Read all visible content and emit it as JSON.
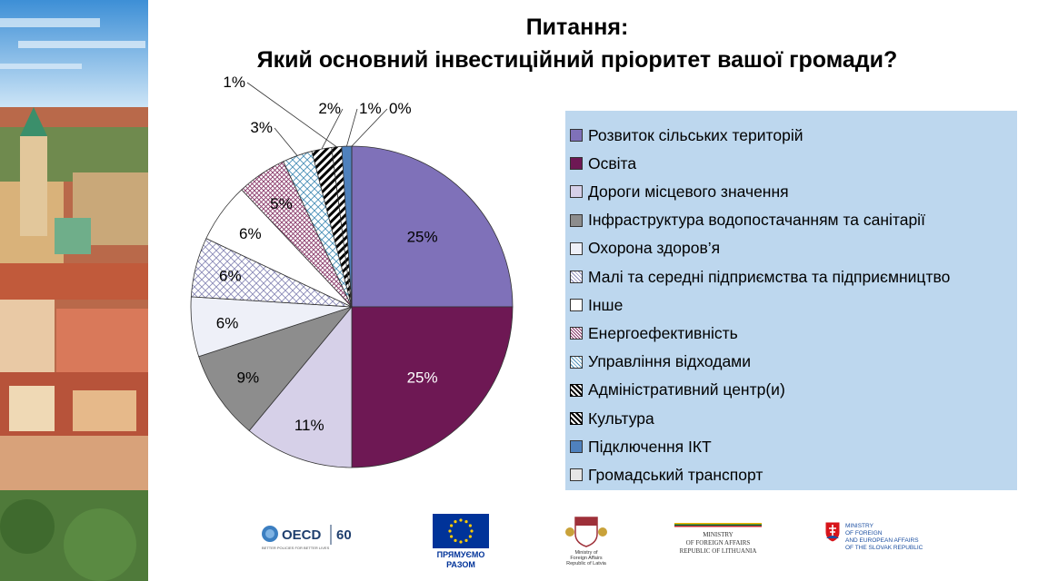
{
  "slide": {
    "title_line1": "Питання:",
    "title_line2": "Який основний інвестиційний пріоритет вашої громади?"
  },
  "chart_data": {
    "type": "pie",
    "title": "Який основний інвестиційний пріоритет вашої громади?",
    "start_angle_deg": 0,
    "direction": "clockwise",
    "legend_position": "right",
    "slices": [
      {
        "label": "Розвиток сільських територій",
        "value": 25,
        "value_label": "25%",
        "color": "#7f71b9",
        "pattern": "solid"
      },
      {
        "label": "Освіта",
        "value": 25,
        "value_label": "25%",
        "color": "#6e1854",
        "pattern": "solid"
      },
      {
        "label": "Дороги місцевого значення",
        "value": 11,
        "value_label": "11%",
        "color": "#d6d0e8",
        "pattern": "solid"
      },
      {
        "label": "Інфраструктура водопостачанням та санітарії",
        "value": 9,
        "value_label": "9%",
        "color": "#8d8d8d",
        "pattern": "solid"
      },
      {
        "label": "Охорона здоров’я",
        "value": 6,
        "value_label": "6%",
        "color": "#eef0f8",
        "pattern": "solid"
      },
      {
        "label": "Малі та середні підприємства та підприємництво",
        "value": 6,
        "value_label": "6%",
        "color": "#8a8ab8",
        "pattern": "dots"
      },
      {
        "label": "Інше",
        "value": 6,
        "value_label": "6%",
        "color": "#ffffff",
        "pattern": "solid"
      },
      {
        "label": "Енергоефективність",
        "value": 5,
        "value_label": "5%",
        "color": "#8a3a6a",
        "pattern": "cross"
      },
      {
        "label": "Управління відходами",
        "value": 3,
        "value_label": "3%",
        "color": "#4a90b8",
        "pattern": "dots"
      },
      {
        "label": "Адміністративний центр(и)",
        "value": 2,
        "value_label": "2%",
        "color": "#000000",
        "pattern": "stripes"
      },
      {
        "label": "Культура",
        "value": 1,
        "value_label": "1%",
        "color": "#000000",
        "pattern": "stripes"
      },
      {
        "label": "Підключення ІКТ",
        "value": 1,
        "value_label": "1%",
        "color": "#4f81bd",
        "pattern": "solid"
      },
      {
        "label": "Громадський транспорт",
        "value": 0,
        "value_label": "0%",
        "color": "#e6e6e6",
        "pattern": "solid"
      }
    ]
  },
  "logos": {
    "oecd": {
      "name": "OECD",
      "sixty": "60",
      "tagline": "BETTER POLICIES FOR BETTER LIVES"
    },
    "eu": {
      "line1": "ПРЯМУЄМО",
      "line2": "РАЗОМ"
    },
    "latvia": {
      "line1": "Ministry of",
      "line2": "Foreign Affairs",
      "line3": "Republic of Latvia"
    },
    "lithuania": {
      "line1": "MINISTRY",
      "line2": "OF FOREIGN AFFAIRS",
      "line3": "REPUBLIC OF LITHUANIA"
    },
    "slovakia": {
      "line1": "MINISTRY",
      "line2": "OF FOREIGN",
      "line3": "AND EUROPEAN AFFAIRS",
      "line4": "OF THE SLOVAK REPUBLIC"
    }
  }
}
